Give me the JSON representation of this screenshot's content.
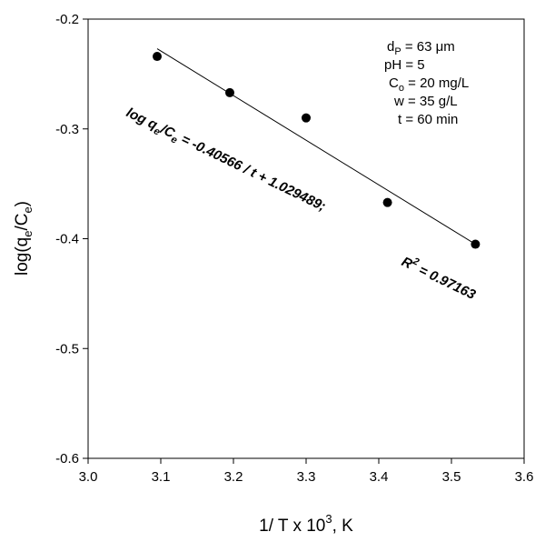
{
  "chart_data": {
    "type": "scatter",
    "title": "",
    "xlabel": {
      "prefix": "1/ T x 10",
      "sup": "3",
      "suffix": ", K"
    },
    "ylabel": {
      "prefix": "log(q",
      "sub1": "e",
      "mid": "/C",
      "sub2": "e",
      "suffix": ")"
    },
    "xlim": [
      3.0,
      3.6
    ],
    "ylim": [
      -0.6,
      -0.2
    ],
    "xticks": [
      3.0,
      3.1,
      3.2,
      3.3,
      3.4,
      3.5,
      3.6
    ],
    "xtick_labels": [
      "3.0",
      "3.1",
      "3.2",
      "3.3",
      "3.4",
      "3.5",
      "3.6"
    ],
    "yticks": [
      -0.6,
      -0.5,
      -0.4,
      -0.3,
      -0.2
    ],
    "ytick_labels": [
      "-0.6",
      "-0.5",
      "-0.4",
      "-0.3",
      "-0.2"
    ],
    "grid": false,
    "series": [
      {
        "x": [
          3.095,
          3.195,
          3.3,
          3.412,
          3.533
        ],
        "y": [
          -0.234,
          -0.267,
          -0.29,
          -0.367,
          -0.405
        ],
        "marker": "filled-circle",
        "color": "#000000"
      }
    ],
    "fit_line": {
      "x": [
        3.095,
        3.533
      ],
      "y": [
        -0.227,
        -0.405
      ]
    },
    "annotations": {
      "conditions": [
        {
          "main": "d",
          "sub": "P",
          "rest": " = 63 μm"
        },
        {
          "main": "pH = 5",
          "sub": "",
          "rest": ""
        },
        {
          "main": "C",
          "sub": "o",
          "rest": " = 20 mg/L"
        },
        {
          "main": "w = 35 g/L",
          "sub": "",
          "rest": ""
        },
        {
          "main": "t = 60 min",
          "sub": "",
          "rest": ""
        }
      ],
      "equation": {
        "p1": "log q",
        "s1": "e",
        "p2": "/C",
        "s2": "e",
        "p3": " = -0.40566 / t + 1.029489;"
      },
      "r2": {
        "p1": "R",
        "sup": "2",
        "p2": " = 0.97163"
      }
    }
  }
}
